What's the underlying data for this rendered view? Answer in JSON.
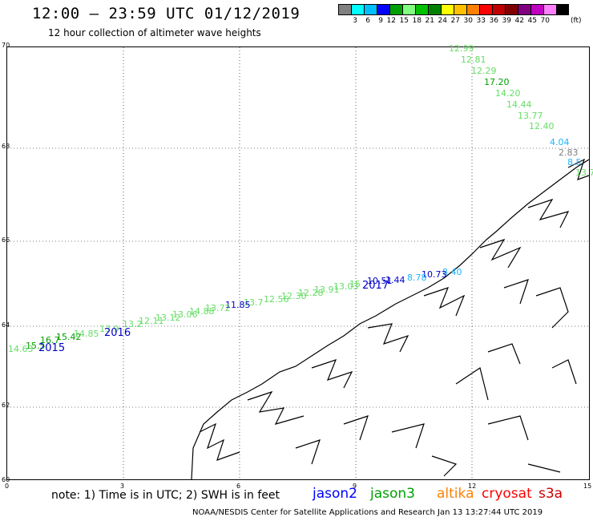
{
  "header": {
    "title": "12:00 – 23:59 UTC 01/12/2019",
    "subtitle": "12 hour collection of altimeter wave heights"
  },
  "colorbar": {
    "colors": [
      "#808080",
      "#00ffff",
      "#00bfff",
      "#0000ff",
      "#00a000",
      "#80ff80",
      "#00c000",
      "#008000",
      "#ffff00",
      "#ffc000",
      "#ff8000",
      "#ff0000",
      "#c00000",
      "#800000",
      "#800080",
      "#c000c0",
      "#ff80ff",
      "#000000"
    ],
    "labels": [
      "3",
      "6",
      "9",
      "12",
      "15",
      "18",
      "21",
      "24",
      "27",
      "30",
      "33",
      "36",
      "39",
      "42",
      "45",
      "70"
    ],
    "unit": "(ft)"
  },
  "axes": {
    "y_ticks": [
      "70",
      "68",
      "66",
      "64",
      "62",
      "60"
    ],
    "x_ticks": [
      "0",
      "3",
      "6",
      "9",
      "12",
      "15"
    ]
  },
  "footer": {
    "note": "note: 1) Time is in UTC; 2) SWH is in feet",
    "legend": [
      {
        "name": "jason2",
        "color": "#0000ff"
      },
      {
        "name": "jason3",
        "color": "#00a000"
      },
      {
        "name": "altika",
        "color": "#ff8000"
      },
      {
        "name": "cryosat",
        "color": "#ff0000"
      },
      {
        "name": "s3a",
        "color": "#cc0000"
      }
    ],
    "credit": "NOAA/NESDIS Center for Satellite Applications and Research     Jan 13 13:27:44 UTC 2019"
  },
  "passes": [
    "2015",
    "2016",
    "2017"
  ],
  "wave_labels": [
    {
      "t": "12.99",
      "c": "#66dd66"
    },
    {
      "t": "12.81",
      "c": "#66dd66"
    },
    {
      "t": "12.29",
      "c": "#66dd66"
    },
    {
      "t": "17.20",
      "c": "#00a000"
    },
    {
      "t": "14.20",
      "c": "#66dd66"
    },
    {
      "t": "14.44",
      "c": "#66dd66"
    },
    {
      "t": "13.77",
      "c": "#66dd66"
    },
    {
      "t": "12.40",
      "c": "#66dd66"
    },
    {
      "t": "4.04",
      "c": "#1eb4ff"
    },
    {
      "t": "2.83",
      "c": "#808080"
    },
    {
      "t": "8.5",
      "c": "#1eb4ff"
    },
    {
      "t": "13.7",
      "c": "#66dd66"
    },
    {
      "t": "8.40",
      "c": "#1eb4ff"
    },
    {
      "t": "10.73",
      "c": "#0000cc"
    },
    {
      "t": "8.78",
      "c": "#1eb4ff"
    },
    {
      "t": "10.51",
      "c": "#0000cc"
    },
    {
      "t": "1.44",
      "c": "#0000cc"
    },
    {
      "t": "15",
      "c": "#66dd66"
    },
    {
      "t": "13.03",
      "c": "#66dd66"
    },
    {
      "t": "13.91",
      "c": "#66dd66"
    },
    {
      "t": "12.28",
      "c": "#66dd66"
    },
    {
      "t": "12.30",
      "c": "#66dd66"
    },
    {
      "t": "12.56",
      "c": "#66dd66"
    },
    {
      "t": "13.7",
      "c": "#66dd66"
    },
    {
      "t": "11.85",
      "c": "#0000cc"
    },
    {
      "t": "13.72",
      "c": "#66dd66"
    },
    {
      "t": "14.88",
      "c": "#66dd66"
    },
    {
      "t": "13.06",
      "c": "#66dd66"
    },
    {
      "t": "13.12",
      "c": "#66dd66"
    },
    {
      "t": "12.11",
      "c": "#66dd66"
    },
    {
      "t": "13.2",
      "c": "#66dd66"
    },
    {
      "t": "13.9",
      "c": "#66dd66"
    },
    {
      "t": "14.85",
      "c": "#66dd66"
    },
    {
      "t": "15.42",
      "c": "#00a000"
    },
    {
      "t": "16.7",
      "c": "#00a000"
    },
    {
      "t": "15.5",
      "c": "#00a000"
    },
    {
      "t": "14.63",
      "c": "#66dd66"
    }
  ]
}
